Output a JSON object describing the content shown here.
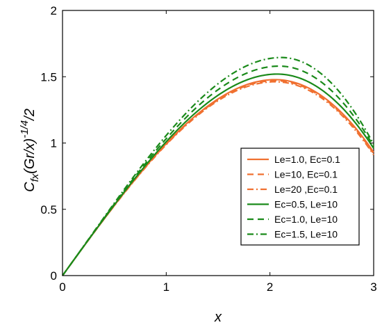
{
  "chart_data": {
    "type": "line",
    "xlabel": "x",
    "ylabel": {
      "base": "C",
      "sub": "fx",
      "mid": "(Gr/x)",
      "sup": "-1/4",
      "tail": "/2"
    },
    "xlim": [
      0,
      3
    ],
    "ylim": [
      0,
      2
    ],
    "xticks": [
      0,
      1,
      2,
      3
    ],
    "yticks": [
      0,
      0.5,
      1,
      1.5,
      2
    ],
    "grid": false,
    "legend_position": "lower-right",
    "series": [
      {
        "name": "Le=1.0, Ec=0.1",
        "color": "#f07030",
        "dash": "solid",
        "peak_x": 2.05,
        "peak_y": 1.478,
        "end_y": 0.93
      },
      {
        "name": "Le=10, Ec=0.1",
        "color": "#f07030",
        "dash": "dashed",
        "peak_x": 2.05,
        "peak_y": 1.47,
        "end_y": 0.92
      },
      {
        "name": "Le=20 ,Ec=0.1",
        "color": "#f07030",
        "dash": "dashdot",
        "peak_x": 2.05,
        "peak_y": 1.462,
        "end_y": 0.91
      },
      {
        "name": "Ec=0.5, Le=10",
        "color": "#1a8a1a",
        "dash": "solid",
        "peak_x": 2.07,
        "peak_y": 1.52,
        "end_y": 0.96
      },
      {
        "name": "Ec=1.0, Le=10",
        "color": "#1a8a1a",
        "dash": "dashed",
        "peak_x": 2.09,
        "peak_y": 1.58,
        "end_y": 0.975
      },
      {
        "name": "Ec=1.5, Le=10",
        "color": "#1a8a1a",
        "dash": "dashdot",
        "peak_x": 2.11,
        "peak_y": 1.645,
        "end_y": 0.99
      }
    ]
  }
}
